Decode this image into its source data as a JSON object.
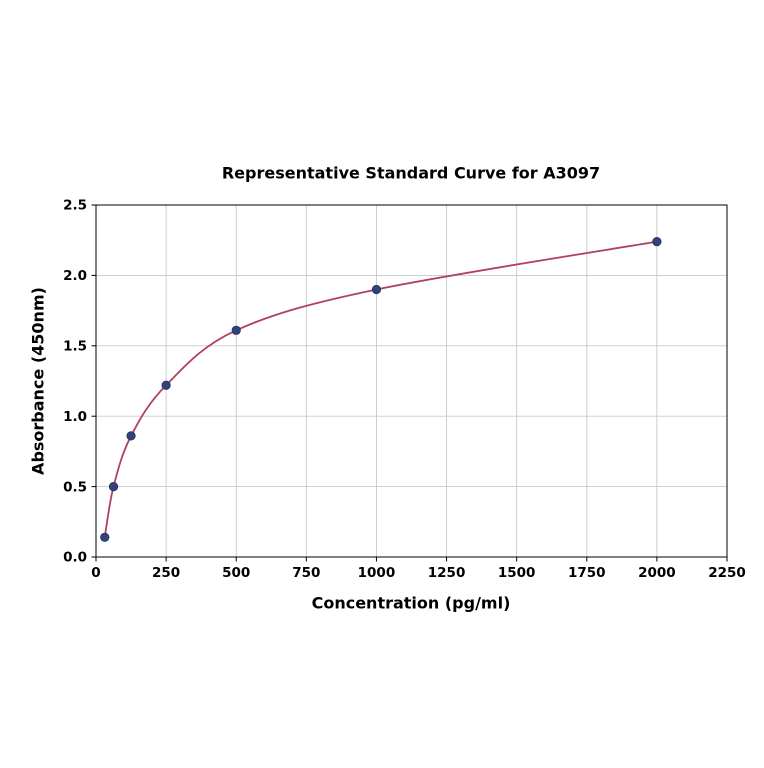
{
  "chart_data": {
    "type": "scatter",
    "title": "Representative Standard Curve for A3097",
    "xlabel": "Concentration (pg/ml)",
    "ylabel": "Absorbance (450nm)",
    "x": [
      31.25,
      62.5,
      125,
      250,
      500,
      1000,
      2000
    ],
    "y": [
      0.14,
      0.5,
      0.86,
      1.22,
      1.61,
      1.9,
      2.24
    ],
    "xlim": [
      0,
      2250
    ],
    "ylim": [
      0,
      2.5
    ],
    "xticks": [
      0,
      250,
      500,
      750,
      1000,
      1250,
      1500,
      1750,
      2000,
      2250
    ],
    "yticks": [
      0,
      0.5,
      1,
      1.5,
      2,
      2.5
    ],
    "ytick_decimals": 1,
    "grid": true,
    "legend_position": "none",
    "colors": {
      "curve": "#b23f63",
      "points": "#33427a",
      "point_edge": "#222f5b",
      "grid": "#c9c9c9",
      "axis": "#000000",
      "background": "#ffffff"
    }
  }
}
